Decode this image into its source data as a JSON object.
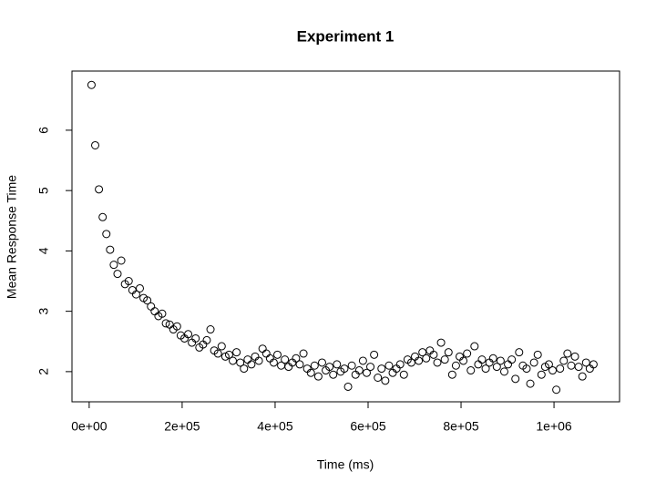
{
  "chart_data": {
    "type": "scatter",
    "title": "Experiment 1",
    "xlabel": "Time (ms)",
    "ylabel": "Mean Response Time",
    "color": "#000000",
    "xlim": [
      -37000,
      1141000
    ],
    "ylim": [
      1.5,
      6.98
    ],
    "xticks": [
      {
        "value": 0,
        "label": "0e+00"
      },
      {
        "value": 200000,
        "label": "2e+05"
      },
      {
        "value": 400000,
        "label": "4e+05"
      },
      {
        "value": 600000,
        "label": "6e+05"
      },
      {
        "value": 800000,
        "label": "8e+05"
      },
      {
        "value": 1000000,
        "label": "1e+06"
      }
    ],
    "yticks": [
      2,
      3,
      4,
      5,
      6
    ],
    "x": [
      5000,
      13000,
      21000,
      29000,
      37000,
      45000,
      53000,
      61000,
      69000,
      77000,
      85000,
      93000,
      101000,
      109000,
      117000,
      125000,
      133000,
      141000,
      149000,
      157000,
      165000,
      173000,
      181000,
      189000,
      197000,
      205000,
      213000,
      221000,
      229000,
      237000,
      245000,
      253000,
      261000,
      269000,
      277000,
      285000,
      293000,
      301000,
      309000,
      317000,
      325000,
      333000,
      341000,
      349000,
      357000,
      365000,
      373000,
      381000,
      389000,
      397000,
      405000,
      413000,
      421000,
      429000,
      437000,
      445000,
      453000,
      461000,
      469000,
      477000,
      485000,
      493000,
      501000,
      509000,
      517000,
      525000,
      533000,
      541000,
      549000,
      557000,
      565000,
      573000,
      581000,
      589000,
      597000,
      605000,
      613000,
      621000,
      629000,
      637000,
      645000,
      653000,
      661000,
      669000,
      677000,
      685000,
      693000,
      701000,
      709000,
      717000,
      725000,
      733000,
      741000,
      749000,
      757000,
      765000,
      773000,
      781000,
      789000,
      797000,
      805000,
      813000,
      821000,
      829000,
      837000,
      845000,
      853000,
      861000,
      869000,
      877000,
      885000,
      893000,
      901000,
      909000,
      917000,
      925000,
      933000,
      941000,
      949000,
      957000,
      965000,
      973000,
      981000,
      989000,
      997000,
      1005000,
      1013000,
      1021000,
      1029000,
      1037000,
      1045000,
      1053000,
      1061000,
      1069000,
      1077000,
      1085000
    ],
    "values": [
      6.75,
      5.75,
      5.02,
      4.56,
      4.28,
      4.02,
      3.77,
      3.62,
      3.84,
      3.45,
      3.5,
      3.35,
      3.28,
      3.38,
      3.22,
      3.18,
      3.08,
      3.0,
      2.92,
      2.96,
      2.8,
      2.78,
      2.7,
      2.75,
      2.6,
      2.55,
      2.62,
      2.48,
      2.55,
      2.4,
      2.45,
      2.52,
      2.7,
      2.35,
      2.3,
      2.42,
      2.25,
      2.28,
      2.18,
      2.32,
      2.15,
      2.05,
      2.2,
      2.12,
      2.25,
      2.18,
      2.38,
      2.3,
      2.22,
      2.15,
      2.28,
      2.1,
      2.2,
      2.08,
      2.15,
      2.22,
      2.12,
      2.3,
      2.05,
      1.98,
      2.1,
      1.92,
      2.15,
      2.02,
      2.08,
      1.95,
      2.12,
      2.0,
      2.05,
      1.75,
      2.1,
      1.95,
      2.02,
      2.18,
      1.98,
      2.08,
      2.28,
      1.9,
      2.05,
      1.85,
      2.1,
      1.98,
      2.05,
      2.12,
      1.95,
      2.2,
      2.15,
      2.25,
      2.18,
      2.32,
      2.22,
      2.35,
      2.28,
      2.15,
      2.48,
      2.2,
      2.32,
      1.95,
      2.1,
      2.25,
      2.18,
      2.3,
      2.02,
      2.42,
      2.12,
      2.2,
      2.05,
      2.15,
      2.22,
      2.08,
      2.18,
      2.0,
      2.12,
      2.2,
      1.88,
      2.32,
      2.1,
      2.05,
      1.8,
      2.15,
      2.28,
      1.95,
      2.08,
      2.12,
      2.02,
      1.7,
      2.05,
      2.18,
      2.3,
      2.1,
      2.25,
      2.08,
      1.92,
      2.15,
      2.05,
      2.12
    ]
  }
}
